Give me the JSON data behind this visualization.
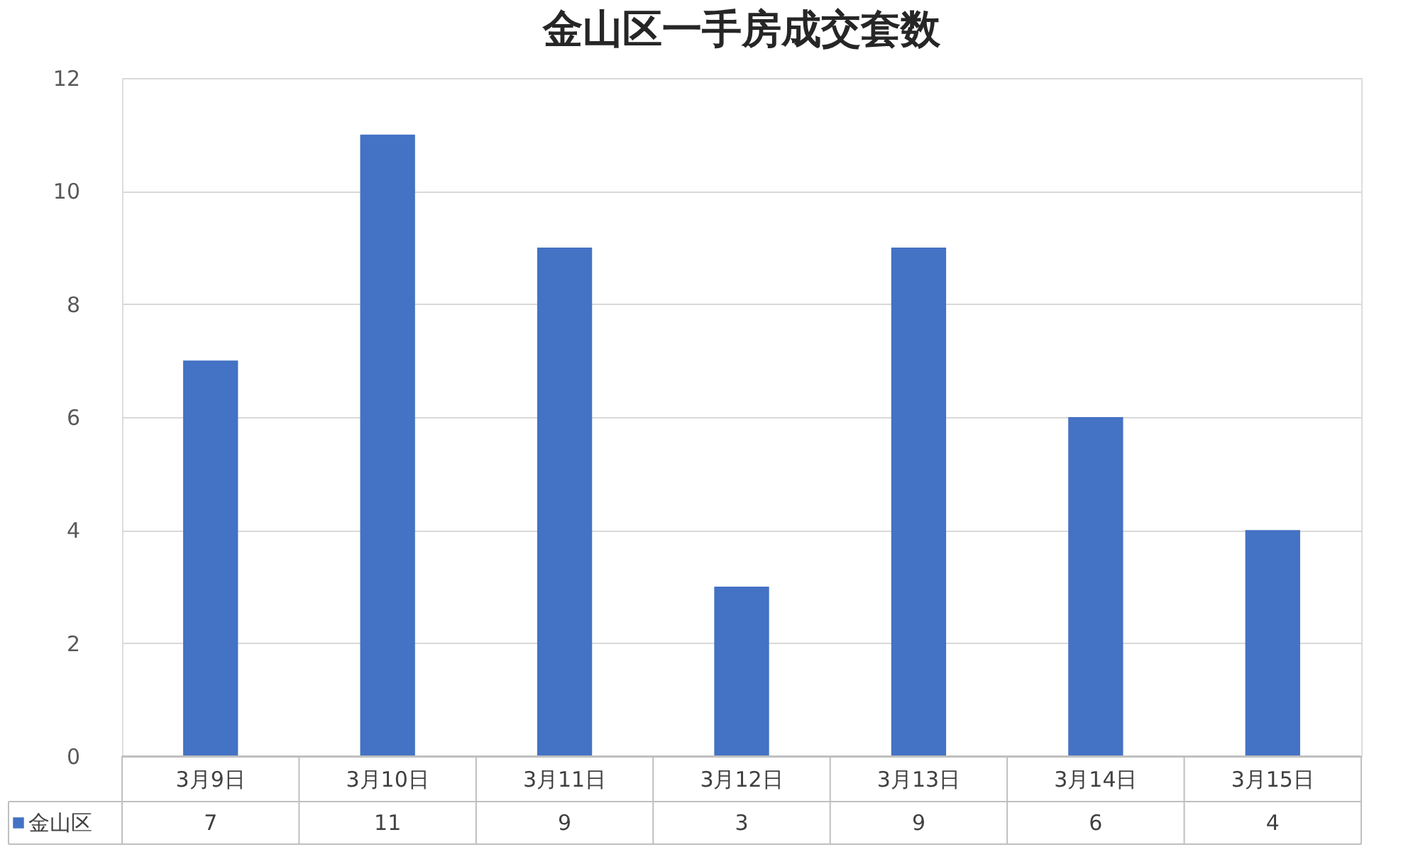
{
  "chart_data": {
    "type": "bar",
    "title": "金山区一手房成交套数",
    "categories": [
      "3月9日",
      "3月10日",
      "3月11日",
      "3月12日",
      "3月13日",
      "3月14日",
      "3月15日"
    ],
    "series": [
      {
        "name": "金山区",
        "color": "#4472c4",
        "values": [
          7,
          11,
          9,
          3,
          9,
          6,
          4
        ]
      }
    ],
    "ylim": [
      0,
      12
    ],
    "yticks": [
      0,
      2,
      4,
      6,
      8,
      10,
      12
    ],
    "grid": "y",
    "data_labels": true,
    "legend": "bottom"
  }
}
